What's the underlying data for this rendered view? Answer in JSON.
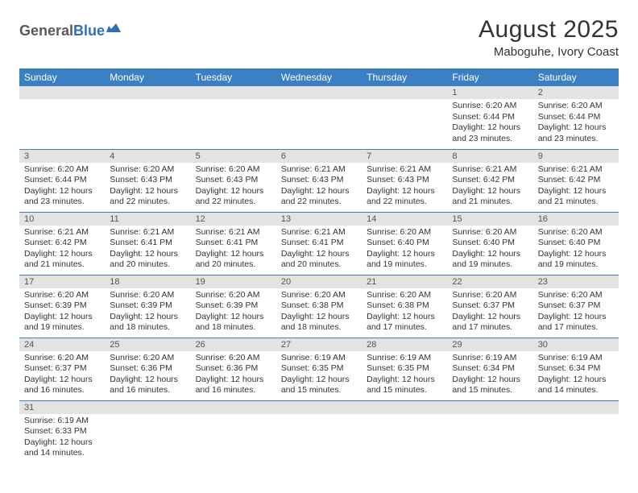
{
  "logo": {
    "gray": "General",
    "blue": "Blue"
  },
  "title": "August 2025",
  "location": "Maboguhe, Ivory Coast",
  "colors": {
    "header_bg": "#3b7fc4",
    "daynum_bg": "#e3e3e3",
    "row_border": "#3b7fc4"
  },
  "day_headers": [
    "Sunday",
    "Monday",
    "Tuesday",
    "Wednesday",
    "Thursday",
    "Friday",
    "Saturday"
  ],
  "weeks": [
    [
      {
        "n": "",
        "lines": []
      },
      {
        "n": "",
        "lines": []
      },
      {
        "n": "",
        "lines": []
      },
      {
        "n": "",
        "lines": []
      },
      {
        "n": "",
        "lines": []
      },
      {
        "n": "1",
        "lines": [
          "Sunrise: 6:20 AM",
          "Sunset: 6:44 PM",
          "Daylight: 12 hours and 23 minutes."
        ]
      },
      {
        "n": "2",
        "lines": [
          "Sunrise: 6:20 AM",
          "Sunset: 6:44 PM",
          "Daylight: 12 hours and 23 minutes."
        ]
      }
    ],
    [
      {
        "n": "3",
        "lines": [
          "Sunrise: 6:20 AM",
          "Sunset: 6:44 PM",
          "Daylight: 12 hours and 23 minutes."
        ]
      },
      {
        "n": "4",
        "lines": [
          "Sunrise: 6:20 AM",
          "Sunset: 6:43 PM",
          "Daylight: 12 hours and 22 minutes."
        ]
      },
      {
        "n": "5",
        "lines": [
          "Sunrise: 6:20 AM",
          "Sunset: 6:43 PM",
          "Daylight: 12 hours and 22 minutes."
        ]
      },
      {
        "n": "6",
        "lines": [
          "Sunrise: 6:21 AM",
          "Sunset: 6:43 PM",
          "Daylight: 12 hours and 22 minutes."
        ]
      },
      {
        "n": "7",
        "lines": [
          "Sunrise: 6:21 AM",
          "Sunset: 6:43 PM",
          "Daylight: 12 hours and 22 minutes."
        ]
      },
      {
        "n": "8",
        "lines": [
          "Sunrise: 6:21 AM",
          "Sunset: 6:42 PM",
          "Daylight: 12 hours and 21 minutes."
        ]
      },
      {
        "n": "9",
        "lines": [
          "Sunrise: 6:21 AM",
          "Sunset: 6:42 PM",
          "Daylight: 12 hours and 21 minutes."
        ]
      }
    ],
    [
      {
        "n": "10",
        "lines": [
          "Sunrise: 6:21 AM",
          "Sunset: 6:42 PM",
          "Daylight: 12 hours and 21 minutes."
        ]
      },
      {
        "n": "11",
        "lines": [
          "Sunrise: 6:21 AM",
          "Sunset: 6:41 PM",
          "Daylight: 12 hours and 20 minutes."
        ]
      },
      {
        "n": "12",
        "lines": [
          "Sunrise: 6:21 AM",
          "Sunset: 6:41 PM",
          "Daylight: 12 hours and 20 minutes."
        ]
      },
      {
        "n": "13",
        "lines": [
          "Sunrise: 6:21 AM",
          "Sunset: 6:41 PM",
          "Daylight: 12 hours and 20 minutes."
        ]
      },
      {
        "n": "14",
        "lines": [
          "Sunrise: 6:20 AM",
          "Sunset: 6:40 PM",
          "Daylight: 12 hours and 19 minutes."
        ]
      },
      {
        "n": "15",
        "lines": [
          "Sunrise: 6:20 AM",
          "Sunset: 6:40 PM",
          "Daylight: 12 hours and 19 minutes."
        ]
      },
      {
        "n": "16",
        "lines": [
          "Sunrise: 6:20 AM",
          "Sunset: 6:40 PM",
          "Daylight: 12 hours and 19 minutes."
        ]
      }
    ],
    [
      {
        "n": "17",
        "lines": [
          "Sunrise: 6:20 AM",
          "Sunset: 6:39 PM",
          "Daylight: 12 hours and 19 minutes."
        ]
      },
      {
        "n": "18",
        "lines": [
          "Sunrise: 6:20 AM",
          "Sunset: 6:39 PM",
          "Daylight: 12 hours and 18 minutes."
        ]
      },
      {
        "n": "19",
        "lines": [
          "Sunrise: 6:20 AM",
          "Sunset: 6:39 PM",
          "Daylight: 12 hours and 18 minutes."
        ]
      },
      {
        "n": "20",
        "lines": [
          "Sunrise: 6:20 AM",
          "Sunset: 6:38 PM",
          "Daylight: 12 hours and 18 minutes."
        ]
      },
      {
        "n": "21",
        "lines": [
          "Sunrise: 6:20 AM",
          "Sunset: 6:38 PM",
          "Daylight: 12 hours and 17 minutes."
        ]
      },
      {
        "n": "22",
        "lines": [
          "Sunrise: 6:20 AM",
          "Sunset: 6:37 PM",
          "Daylight: 12 hours and 17 minutes."
        ]
      },
      {
        "n": "23",
        "lines": [
          "Sunrise: 6:20 AM",
          "Sunset: 6:37 PM",
          "Daylight: 12 hours and 17 minutes."
        ]
      }
    ],
    [
      {
        "n": "24",
        "lines": [
          "Sunrise: 6:20 AM",
          "Sunset: 6:37 PM",
          "Daylight: 12 hours and 16 minutes."
        ]
      },
      {
        "n": "25",
        "lines": [
          "Sunrise: 6:20 AM",
          "Sunset: 6:36 PM",
          "Daylight: 12 hours and 16 minutes."
        ]
      },
      {
        "n": "26",
        "lines": [
          "Sunrise: 6:20 AM",
          "Sunset: 6:36 PM",
          "Daylight: 12 hours and 16 minutes."
        ]
      },
      {
        "n": "27",
        "lines": [
          "Sunrise: 6:19 AM",
          "Sunset: 6:35 PM",
          "Daylight: 12 hours and 15 minutes."
        ]
      },
      {
        "n": "28",
        "lines": [
          "Sunrise: 6:19 AM",
          "Sunset: 6:35 PM",
          "Daylight: 12 hours and 15 minutes."
        ]
      },
      {
        "n": "29",
        "lines": [
          "Sunrise: 6:19 AM",
          "Sunset: 6:34 PM",
          "Daylight: 12 hours and 15 minutes."
        ]
      },
      {
        "n": "30",
        "lines": [
          "Sunrise: 6:19 AM",
          "Sunset: 6:34 PM",
          "Daylight: 12 hours and 14 minutes."
        ]
      }
    ],
    [
      {
        "n": "31",
        "lines": [
          "Sunrise: 6:19 AM",
          "Sunset: 6:33 PM",
          "Daylight: 12 hours and 14 minutes."
        ]
      },
      {
        "n": "",
        "lines": []
      },
      {
        "n": "",
        "lines": []
      },
      {
        "n": "",
        "lines": []
      },
      {
        "n": "",
        "lines": []
      },
      {
        "n": "",
        "lines": []
      },
      {
        "n": "",
        "lines": []
      }
    ]
  ]
}
